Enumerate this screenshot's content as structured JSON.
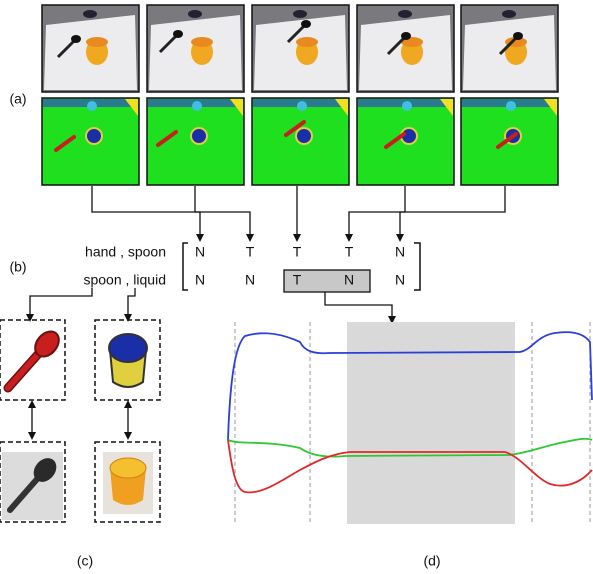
{
  "panel_labels": {
    "a": "(a)",
    "b": "(b)",
    "c": "(c)",
    "d": "(d)"
  },
  "relations": {
    "rows": [
      {
        "pair": "hand , spoon",
        "states": [
          "N",
          "T",
          "T",
          "T",
          "N"
        ]
      },
      {
        "pair": "spoon , liquid",
        "states": [
          "N",
          "N",
          "T",
          "N",
          "N"
        ]
      }
    ]
  }
}
